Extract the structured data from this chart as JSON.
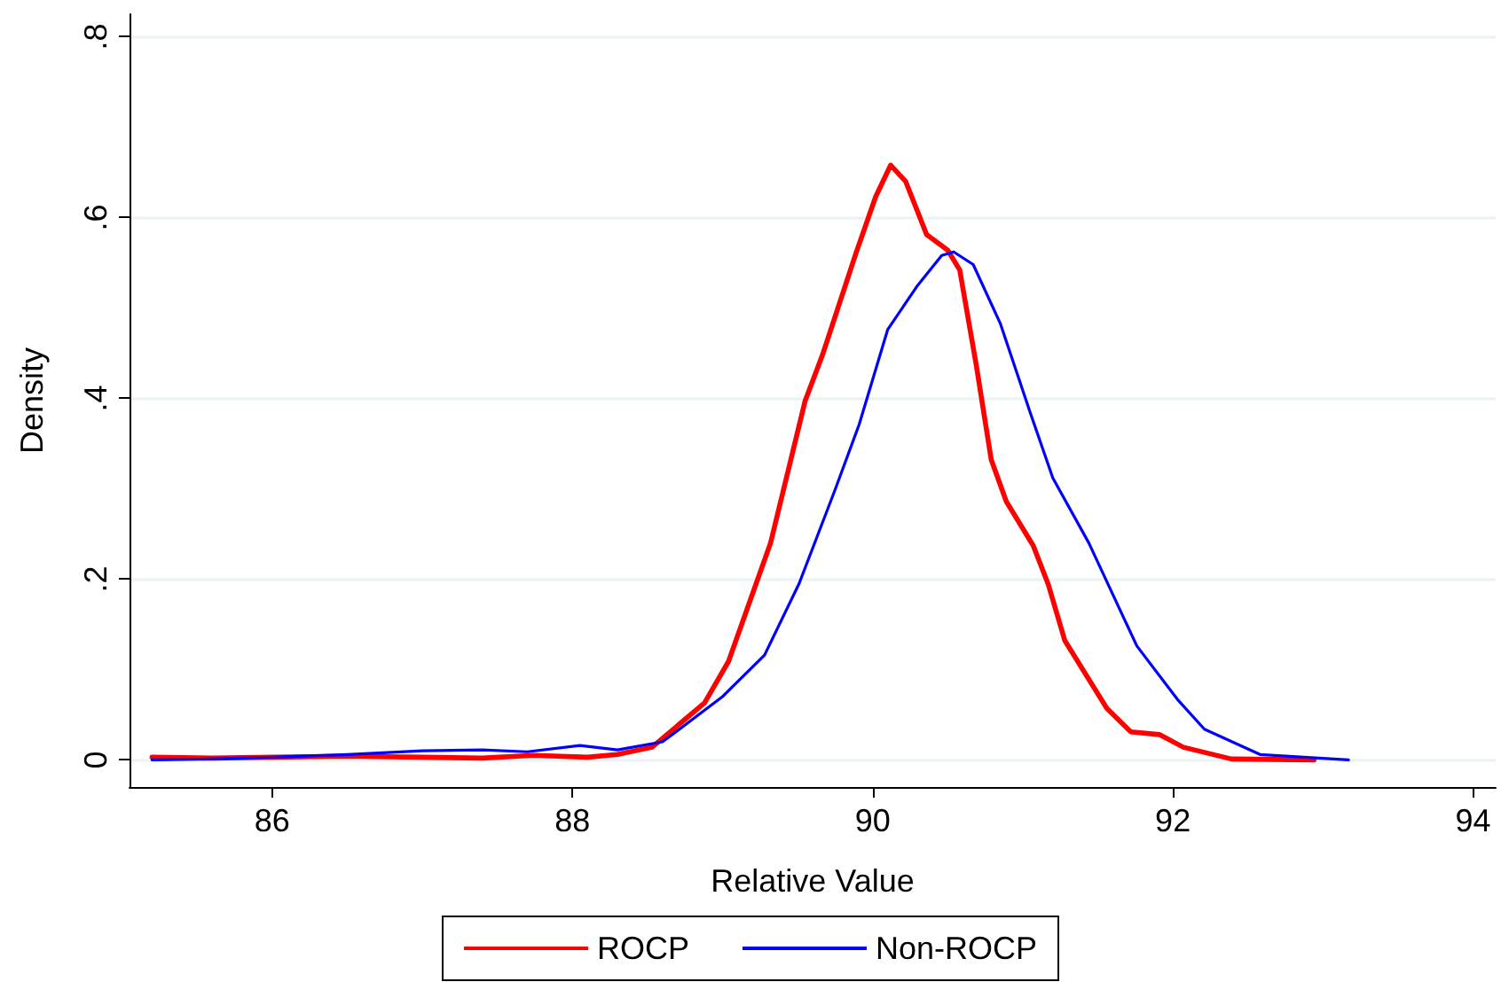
{
  "chart_data": {
    "type": "line",
    "xlabel": "Relative Value",
    "ylabel": "Density",
    "xlim": [
      85.05,
      94.15
    ],
    "xticks": [
      86,
      88,
      90,
      92,
      94
    ],
    "ylim": [
      -0.03,
      0.825
    ],
    "yticks": [
      0,
      {
        "value": 0.2,
        "label": ".2"
      },
      {
        "value": 0.4,
        "label": ".4"
      },
      {
        "value": 0.6,
        "label": ".6"
      },
      {
        "value": 0.8,
        "label": ".8"
      }
    ],
    "grid": "y",
    "legend": "bottom",
    "marker": "none",
    "line_style": "solid",
    "series": [
      {
        "name": "ROCP",
        "color": "#ff0000",
        "x": [
          85.2,
          85.6,
          86.0,
          86.5,
          87.0,
          87.4,
          87.74,
          88.1,
          88.3,
          88.53,
          88.88,
          89.04,
          89.32,
          89.55,
          89.67,
          89.89,
          90.02,
          90.12,
          90.22,
          90.36,
          90.5,
          90.58,
          90.69,
          90.79,
          90.89,
          91.07,
          91.17,
          91.28,
          91.56,
          91.72,
          91.91,
          92.07,
          92.39,
          92.94
        ],
        "values": [
          0.003,
          0.002,
          0.003,
          0.004,
          0.003,
          0.002,
          0.005,
          0.003,
          0.006,
          0.014,
          0.063,
          0.109,
          0.24,
          0.397,
          0.45,
          0.561,
          0.623,
          0.658,
          0.64,
          0.581,
          0.564,
          0.542,
          0.437,
          0.332,
          0.286,
          0.237,
          0.194,
          0.132,
          0.057,
          0.031,
          0.028,
          0.014,
          0.001,
          0.0
        ]
      },
      {
        "name": "Non-ROCP",
        "color": "#0000ff",
        "x": [
          85.2,
          85.6,
          86.0,
          86.5,
          87.0,
          87.4,
          87.7,
          88.05,
          88.3,
          88.6,
          88.69,
          89.0,
          89.28,
          89.51,
          89.75,
          89.91,
          90.1,
          90.3,
          90.46,
          90.54,
          90.67,
          90.85,
          91.05,
          91.2,
          91.44,
          91.76,
          92.03,
          92.21,
          92.58,
          93.17
        ],
        "values": [
          0.0,
          0.001,
          0.003,
          0.006,
          0.01,
          0.011,
          0.009,
          0.016,
          0.011,
          0.02,
          0.031,
          0.07,
          0.116,
          0.195,
          0.299,
          0.371,
          0.476,
          0.525,
          0.558,
          0.562,
          0.548,
          0.483,
          0.384,
          0.312,
          0.24,
          0.126,
          0.067,
          0.034,
          0.006,
          0.0
        ]
      }
    ]
  }
}
